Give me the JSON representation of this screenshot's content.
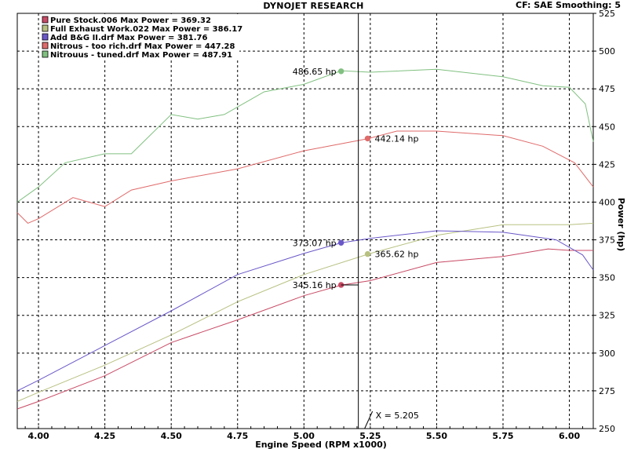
{
  "header": {
    "title": "DYNOJET RESEARCH",
    "settings": "CF: SAE   Smoothing: 5"
  },
  "colors": {
    "pure_stock": "#c84a64",
    "full_exhaust": "#b8c080",
    "add_bg": "#6a58c8",
    "nitrous_rich": "#e06a6a",
    "nitrous_tuned": "#80c080",
    "grid": "#000000",
    "axis_text": "#000000"
  },
  "chart_data": {
    "type": "line",
    "xlabel": "Engine Speed (RPM x1000)",
    "ylabel": "Power (hp)",
    "xlim": [
      3.92,
      6.09
    ],
    "ylim": [
      250,
      525
    ],
    "x_ticks": [
      "4.00",
      "4.25",
      "4.50",
      "4.75",
      "5.00",
      "5.25",
      "5.50",
      "5.75",
      "6.00"
    ],
    "y_ticks": [
      "250",
      "275",
      "300",
      "325",
      "350",
      "375",
      "400",
      "425",
      "450",
      "475",
      "500",
      "525"
    ],
    "grid": true,
    "legend_placement": "top-left",
    "cursor": {
      "x": 5.205,
      "label": "X = 5.205"
    },
    "series": [
      {
        "name": "Pure Stock.006 Max Power = 369.32",
        "color": "#c84a64",
        "points": [
          [
            3.92,
            263
          ],
          [
            4.0,
            268
          ],
          [
            4.25,
            285
          ],
          [
            4.5,
            307
          ],
          [
            4.75,
            322
          ],
          [
            5.0,
            338
          ],
          [
            5.14,
            345
          ],
          [
            5.25,
            348
          ],
          [
            5.5,
            360
          ],
          [
            5.75,
            364
          ],
          [
            5.92,
            369
          ],
          [
            6.0,
            368
          ],
          [
            6.09,
            368
          ]
        ],
        "marker": {
          "x": 5.14,
          "y": 345.16,
          "label": "345.16 hp"
        }
      },
      {
        "name": "Full Exhaust Work.022 Max Power = 386.17",
        "color": "#b8c080",
        "points": [
          [
            3.92,
            268
          ],
          [
            4.0,
            274
          ],
          [
            4.25,
            292
          ],
          [
            4.5,
            312
          ],
          [
            4.75,
            334
          ],
          [
            5.0,
            352
          ],
          [
            5.25,
            366
          ],
          [
            5.5,
            378
          ],
          [
            5.75,
            385
          ],
          [
            6.0,
            385
          ],
          [
            6.09,
            386
          ]
        ],
        "marker": {
          "x": 5.24,
          "y": 365.62,
          "label": "365.62 hp"
        }
      },
      {
        "name": "Add B&G II.drf Max Power = 381.76",
        "color": "#6a58c8",
        "points": [
          [
            3.92,
            275
          ],
          [
            4.0,
            282
          ],
          [
            4.25,
            305
          ],
          [
            4.5,
            328
          ],
          [
            4.75,
            352
          ],
          [
            5.0,
            366
          ],
          [
            5.14,
            373
          ],
          [
            5.25,
            376
          ],
          [
            5.5,
            381
          ],
          [
            5.75,
            380
          ],
          [
            5.95,
            375
          ],
          [
            6.05,
            365
          ],
          [
            6.09,
            355
          ]
        ],
        "marker": {
          "x": 5.14,
          "y": 373.07,
          "label": "373.07 hp"
        }
      },
      {
        "name": "Nitrous - too rich.drf Max Power = 447.28",
        "color": "#e06a6a",
        "points": [
          [
            3.92,
            393
          ],
          [
            3.96,
            386
          ],
          [
            4.0,
            389
          ],
          [
            4.13,
            403
          ],
          [
            4.25,
            397
          ],
          [
            4.35,
            408
          ],
          [
            4.5,
            414
          ],
          [
            4.75,
            422
          ],
          [
            5.0,
            434
          ],
          [
            5.24,
            442
          ],
          [
            5.35,
            447
          ],
          [
            5.5,
            447
          ],
          [
            5.75,
            444
          ],
          [
            5.9,
            437
          ],
          [
            6.02,
            426
          ],
          [
            6.09,
            410
          ]
        ],
        "marker": {
          "x": 5.24,
          "y": 442.14,
          "label": "442.14 hp"
        }
      },
      {
        "name": "Nitrouus - tuned.drf Max Power = 487.91",
        "color": "#80c080",
        "points": [
          [
            3.92,
            400
          ],
          [
            4.0,
            410
          ],
          [
            4.1,
            426
          ],
          [
            4.25,
            432
          ],
          [
            4.35,
            432
          ],
          [
            4.5,
            458
          ],
          [
            4.6,
            455
          ],
          [
            4.7,
            458
          ],
          [
            4.85,
            473
          ],
          [
            5.0,
            478
          ],
          [
            5.14,
            487
          ],
          [
            5.25,
            486
          ],
          [
            5.5,
            488
          ],
          [
            5.75,
            483
          ],
          [
            5.9,
            477
          ],
          [
            6.0,
            476
          ],
          [
            6.06,
            465
          ],
          [
            6.09,
            440
          ]
        ],
        "marker": {
          "x": 5.14,
          "y": 486.65,
          "label": "486.65 hp"
        }
      }
    ]
  }
}
